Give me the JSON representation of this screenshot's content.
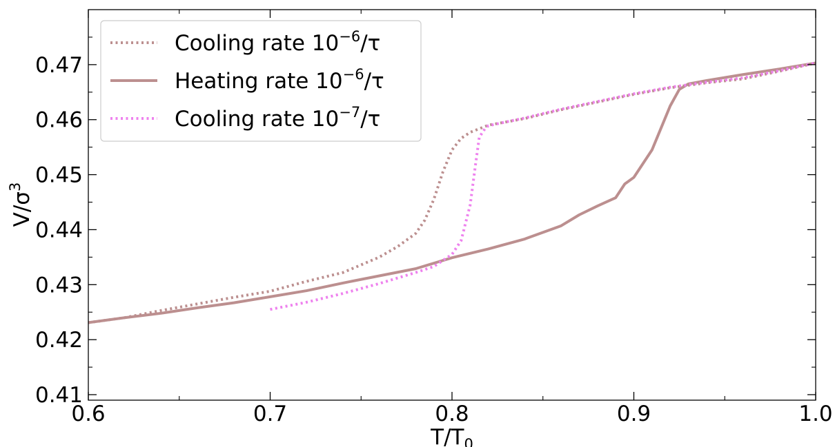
{
  "chart_data": {
    "type": "line",
    "xlabel": "T/T",
    "xlabel_sub": "0",
    "ylabel": "V/σ",
    "ylabel_sup": "3",
    "xlim": [
      0.6,
      1.0
    ],
    "ylim": [
      0.409,
      0.48
    ],
    "x_ticks": [
      "0.6",
      "0.7",
      "0.8",
      "0.9",
      "1.0"
    ],
    "y_ticks": [
      "0.41",
      "0.42",
      "0.43",
      "0.44",
      "0.45",
      "0.46",
      "0.47"
    ],
    "grid": false,
    "legend_position": "top-left",
    "series": [
      {
        "name": "Cooling rate 10",
        "name_sup": "−6",
        "name_suffix": "/τ",
        "color": "#bc8f8f",
        "style": "dotted",
        "x": [
          0.6,
          0.62,
          0.64,
          0.66,
          0.68,
          0.7,
          0.72,
          0.74,
          0.76,
          0.77,
          0.78,
          0.785,
          0.79,
          0.795,
          0.8,
          0.805,
          0.81,
          0.82,
          0.84,
          0.86,
          0.88,
          0.9,
          0.92,
          0.94,
          0.96,
          0.98,
          1.0
        ],
        "y": [
          0.4231,
          0.424,
          0.4253,
          0.4265,
          0.4277,
          0.4288,
          0.4306,
          0.4322,
          0.435,
          0.4369,
          0.4393,
          0.4417,
          0.4455,
          0.4505,
          0.4545,
          0.4566,
          0.4577,
          0.459,
          0.4602,
          0.4618,
          0.4632,
          0.4646,
          0.4658,
          0.4667,
          0.4674,
          0.4688,
          0.4703
        ]
      },
      {
        "name": "Heating rate 10",
        "name_sup": "−6",
        "name_suffix": "/τ",
        "color": "#bc8f8f",
        "style": "solid",
        "x": [
          0.6,
          0.62,
          0.64,
          0.66,
          0.68,
          0.7,
          0.72,
          0.74,
          0.76,
          0.78,
          0.8,
          0.82,
          0.84,
          0.86,
          0.87,
          0.88,
          0.89,
          0.895,
          0.9,
          0.91,
          0.915,
          0.92,
          0.925,
          0.93,
          0.94,
          0.96,
          0.98,
          1.0
        ],
        "y": [
          0.4231,
          0.424,
          0.4248,
          0.4258,
          0.4267,
          0.4278,
          0.4289,
          0.4303,
          0.4316,
          0.4329,
          0.4349,
          0.4365,
          0.4383,
          0.4407,
          0.4427,
          0.4443,
          0.4458,
          0.4483,
          0.4495,
          0.4545,
          0.4585,
          0.4625,
          0.4655,
          0.4665,
          0.4671,
          0.4682,
          0.4692,
          0.4703
        ]
      },
      {
        "name": "Cooling rate 10",
        "name_sup": "−7",
        "name_suffix": "/τ",
        "color": "#ee82ee",
        "style": "dotted",
        "x": [
          0.7,
          0.72,
          0.74,
          0.76,
          0.78,
          0.79,
          0.8,
          0.805,
          0.81,
          0.813,
          0.815,
          0.818,
          0.82,
          0.84,
          0.86,
          0.88,
          0.9,
          0.92,
          0.94,
          0.96,
          0.98,
          1.0
        ],
        "y": [
          0.4255,
          0.4268,
          0.4284,
          0.4302,
          0.4322,
          0.4333,
          0.4355,
          0.438,
          0.4445,
          0.452,
          0.4568,
          0.4583,
          0.4589,
          0.4603,
          0.4619,
          0.4633,
          0.4647,
          0.4659,
          0.4668,
          0.4676,
          0.4689,
          0.4703
        ]
      }
    ]
  }
}
